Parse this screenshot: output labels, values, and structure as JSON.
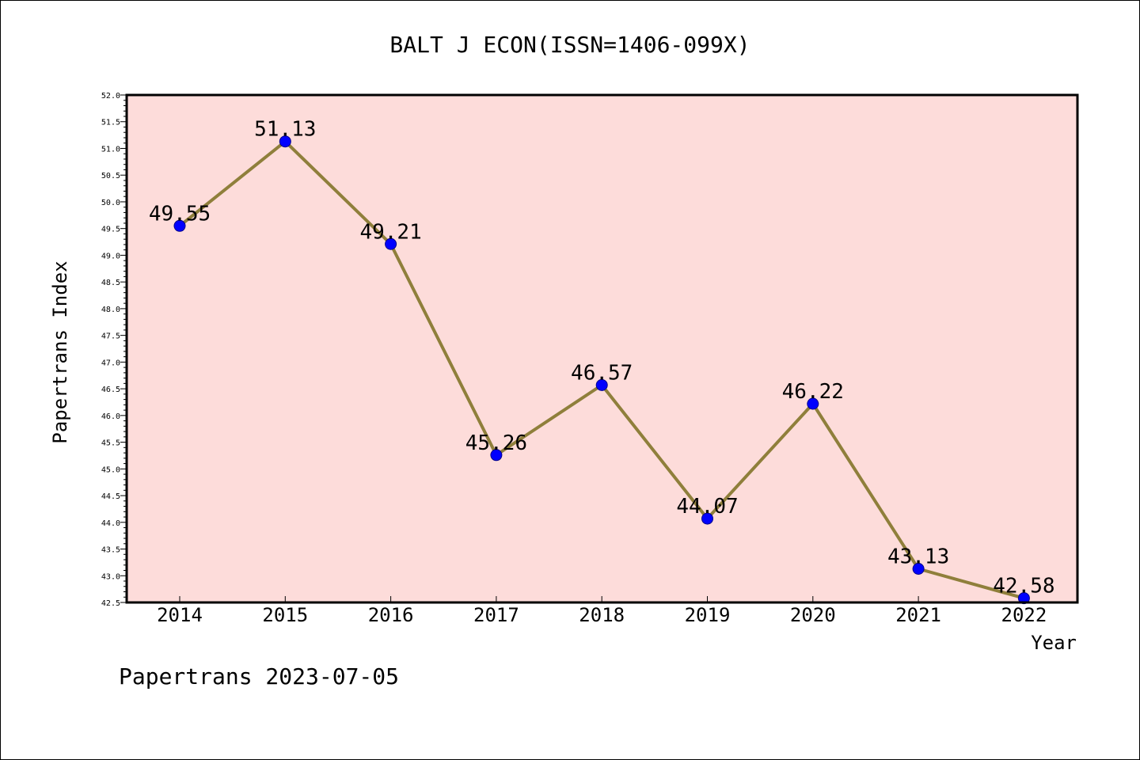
{
  "chart_data": {
    "type": "line",
    "title": "BALT J ECON(ISSN=1406-099X)",
    "xlabel": "Year",
    "ylabel": "Papertrans Index",
    "categories": [
      "2014",
      "2015",
      "2016",
      "2017",
      "2018",
      "2019",
      "2020",
      "2021",
      "2022"
    ],
    "values": [
      49.55,
      51.13,
      49.21,
      45.26,
      46.57,
      44.07,
      46.22,
      43.13,
      42.58
    ],
    "value_labels": [
      "49.55",
      "51.13",
      "49.21",
      "45.26",
      "46.57",
      "44.07",
      "46.22",
      "43.13",
      "42.58"
    ],
    "ylim": [
      42.5,
      52.0
    ],
    "yticks": [
      "42.5",
      "43.0",
      "43.5",
      "44.0",
      "44.5",
      "45.0",
      "45.5",
      "46.0",
      "46.5",
      "47.0",
      "47.5",
      "48.0",
      "48.5",
      "49.0",
      "49.5",
      "50.0",
      "50.5",
      "51.0",
      "51.5",
      "52.0"
    ],
    "grid": false,
    "colors": {
      "plot_background": "#fddcda",
      "line": "#8f7f3b",
      "marker": "#0000ff"
    }
  },
  "footer": {
    "text": "Papertrans 2023-07-05"
  }
}
